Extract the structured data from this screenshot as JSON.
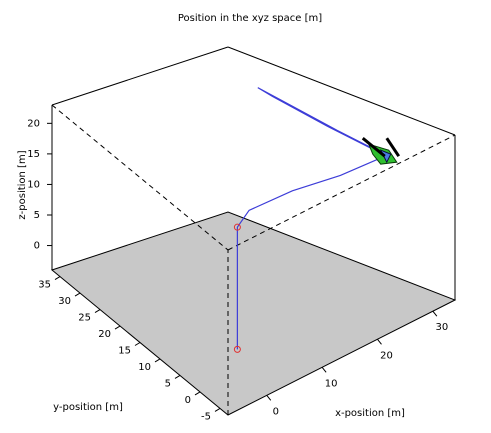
{
  "chart_data": {
    "type": "line3d",
    "title": "Position in the xyz space  [m]",
    "xlabel": "x-position  [m]",
    "ylabel": "y-position  [m]",
    "zlabel": "z-position  [m]",
    "xlim": [
      -7,
      34
    ],
    "ylim": [
      -7,
      37
    ],
    "zlim": [
      -4,
      23
    ],
    "xticks": [
      0,
      10,
      20,
      30
    ],
    "yticks": [
      -5,
      0,
      5,
      10,
      15,
      20,
      25,
      30,
      35
    ],
    "zticks": [
      0,
      5,
      10,
      15,
      20
    ],
    "floor_color": "#c8c8c8",
    "series": [
      {
        "color": "#3d3dd8",
        "x": [
          0,
          0,
          0,
          3,
          12,
          22,
          30,
          33,
          30,
          27,
          26,
          27,
          30,
          33
        ],
        "y": [
          0,
          0,
          0,
          1,
          2,
          3,
          4,
          5,
          12,
          20,
          24,
          22,
          14,
          6
        ],
        "z": [
          0,
          10,
          20,
          21,
          20,
          18,
          17,
          16,
          19,
          22,
          23,
          22,
          19,
          16
        ]
      }
    ],
    "waypoints": {
      "color": "#e03030",
      "x": [
        0,
        0
      ],
      "y": [
        0,
        0
      ],
      "z": [
        0,
        20
      ]
    }
  }
}
